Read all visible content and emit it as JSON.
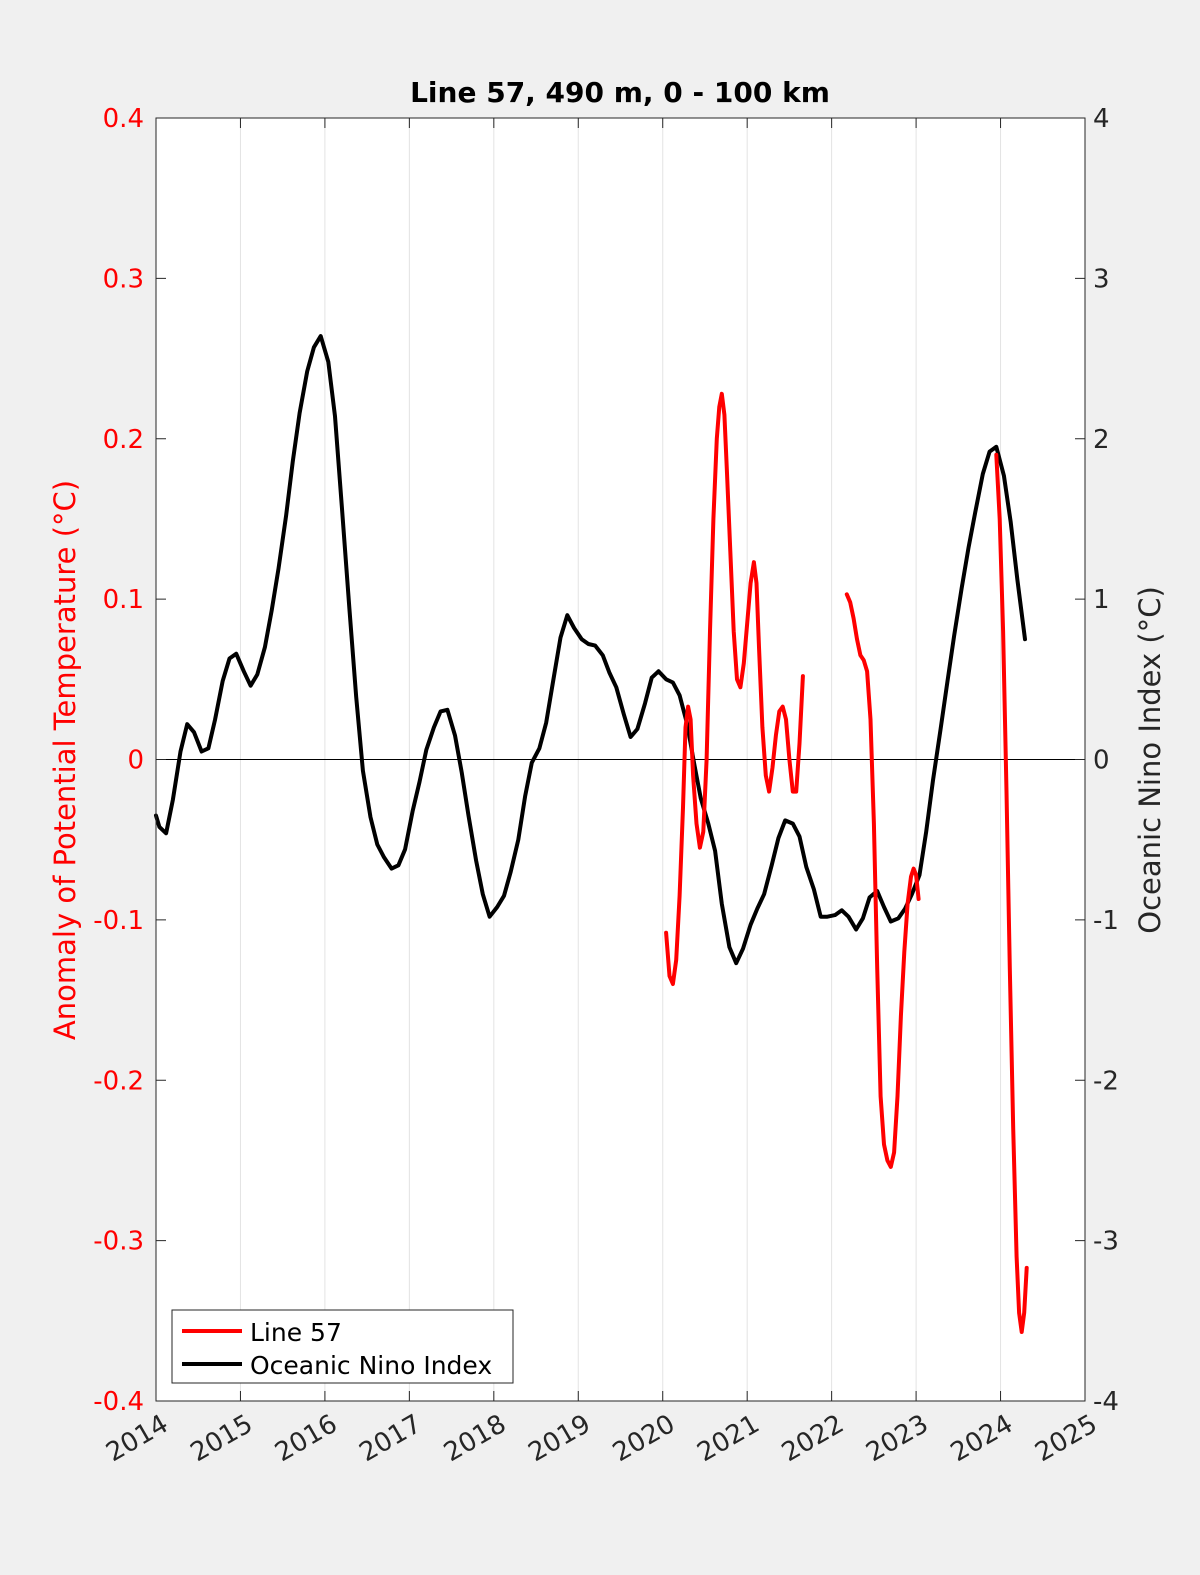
{
  "chart_data": {
    "type": "line",
    "title": "Line 57, 490 m, 0 - 100 km",
    "xlabel": "",
    "ylabel_left": "Anomaly of Potential Temperature (°C)",
    "ylabel_right": "Oceanic Nino Index (°C)",
    "xlim": [
      2014,
      2025
    ],
    "ylim_left": [
      -0.4,
      0.4
    ],
    "ylim_right": [
      -4,
      4
    ],
    "x_ticks": [
      "2014",
      "2015",
      "2016",
      "2017",
      "2018",
      "2019",
      "2020",
      "2021",
      "2022",
      "2023",
      "2024",
      "2025"
    ],
    "y_ticks_left": [
      "0.4",
      "0.3",
      "0.2",
      "0.1",
      "0",
      "-0.1",
      "-0.2",
      "-0.3",
      "-0.4"
    ],
    "y_ticks_right": [
      "4",
      "3",
      "2",
      "1",
      "0",
      "-1",
      "-2",
      "-3",
      "-4"
    ],
    "grid": "vertical",
    "legend_position": "bottom-left",
    "colors": {
      "line57": "#ff0000",
      "oni": "#000000",
      "left_axis": "#ff0000",
      "right_axis": "#262626"
    },
    "series": [
      {
        "name": "Line 57",
        "axis": "left",
        "segments": [
          [
            [
              2020.04,
              -0.108
            ],
            [
              2020.08,
              -0.135
            ],
            [
              2020.12,
              -0.14
            ],
            [
              2020.16,
              -0.125
            ],
            [
              2020.2,
              -0.085
            ],
            [
              2020.24,
              -0.03
            ],
            [
              2020.27,
              0.02
            ],
            [
              2020.3,
              0.033
            ],
            [
              2020.33,
              0.025
            ],
            [
              2020.36,
              -0.01
            ],
            [
              2020.4,
              -0.04
            ],
            [
              2020.44,
              -0.055
            ],
            [
              2020.48,
              -0.045
            ],
            [
              2020.52,
              0.0
            ],
            [
              2020.56,
              0.08
            ],
            [
              2020.6,
              0.15
            ],
            [
              2020.64,
              0.2
            ],
            [
              2020.67,
              0.22
            ],
            [
              2020.7,
              0.228
            ],
            [
              2020.73,
              0.215
            ],
            [
              2020.76,
              0.18
            ],
            [
              2020.8,
              0.13
            ],
            [
              2020.84,
              0.08
            ],
            [
              2020.88,
              0.05
            ],
            [
              2020.92,
              0.045
            ],
            [
              2020.96,
              0.06
            ],
            [
              2021.0,
              0.085
            ],
            [
              2021.04,
              0.11
            ],
            [
              2021.08,
              0.123
            ],
            [
              2021.11,
              0.11
            ],
            [
              2021.14,
              0.07
            ],
            [
              2021.18,
              0.02
            ],
            [
              2021.22,
              -0.01
            ],
            [
              2021.26,
              -0.02
            ],
            [
              2021.3,
              -0.005
            ],
            [
              2021.34,
              0.015
            ],
            [
              2021.38,
              0.03
            ],
            [
              2021.42,
              0.033
            ],
            [
              2021.46,
              0.025
            ],
            [
              2021.5,
              0.0
            ],
            [
              2021.54,
              -0.02
            ],
            [
              2021.58,
              -0.02
            ],
            [
              2021.62,
              0.01
            ],
            [
              2021.66,
              0.052
            ]
          ],
          [
            [
              2022.18,
              0.103
            ],
            [
              2022.22,
              0.098
            ],
            [
              2022.26,
              0.088
            ],
            [
              2022.3,
              0.075
            ],
            [
              2022.34,
              0.065
            ],
            [
              2022.38,
              0.062
            ],
            [
              2022.42,
              0.055
            ],
            [
              2022.46,
              0.025
            ],
            [
              2022.5,
              -0.04
            ],
            [
              2022.54,
              -0.13
            ],
            [
              2022.58,
              -0.21
            ],
            [
              2022.62,
              -0.24
            ],
            [
              2022.66,
              -0.25
            ],
            [
              2022.7,
              -0.254
            ],
            [
              2022.74,
              -0.245
            ],
            [
              2022.78,
              -0.21
            ],
            [
              2022.82,
              -0.16
            ],
            [
              2022.86,
              -0.12
            ],
            [
              2022.9,
              -0.09
            ],
            [
              2022.94,
              -0.073
            ],
            [
              2022.97,
              -0.068
            ],
            [
              2023.0,
              -0.072
            ],
            [
              2023.03,
              -0.087
            ]
          ],
          [
            [
              2023.95,
              0.19
            ],
            [
              2023.99,
              0.15
            ],
            [
              2024.03,
              0.08
            ],
            [
              2024.07,
              -0.02
            ],
            [
              2024.11,
              -0.13
            ],
            [
              2024.15,
              -0.23
            ],
            [
              2024.19,
              -0.31
            ],
            [
              2024.22,
              -0.345
            ],
            [
              2024.25,
              -0.357
            ],
            [
              2024.28,
              -0.345
            ],
            [
              2024.31,
              -0.317
            ]
          ]
        ]
      },
      {
        "name": "Oceanic Nino Index",
        "axis": "right",
        "segments": [
          [
            [
              2014.0,
              -0.35
            ],
            [
              2014.04,
              -0.42
            ],
            [
              2014.12,
              -0.46
            ],
            [
              2014.2,
              -0.25
            ],
            [
              2014.29,
              0.05
            ],
            [
              2014.37,
              0.22
            ],
            [
              2014.45,
              0.17
            ],
            [
              2014.54,
              0.05
            ],
            [
              2014.62,
              0.07
            ],
            [
              2014.7,
              0.25
            ],
            [
              2014.79,
              0.49
            ],
            [
              2014.87,
              0.63
            ],
            [
              2014.95,
              0.66
            ],
            [
              2015.04,
              0.55
            ],
            [
              2015.12,
              0.46
            ],
            [
              2015.2,
              0.53
            ],
            [
              2015.29,
              0.7
            ],
            [
              2015.37,
              0.93
            ],
            [
              2015.45,
              1.19
            ],
            [
              2015.54,
              1.52
            ],
            [
              2015.62,
              1.86
            ],
            [
              2015.7,
              2.16
            ],
            [
              2015.79,
              2.42
            ],
            [
              2015.87,
              2.57
            ],
            [
              2015.95,
              2.64
            ],
            [
              2016.04,
              2.48
            ],
            [
              2016.12,
              2.14
            ],
            [
              2016.2,
              1.58
            ],
            [
              2016.29,
              0.94
            ],
            [
              2016.37,
              0.39
            ],
            [
              2016.45,
              -0.07
            ],
            [
              2016.54,
              -0.36
            ],
            [
              2016.62,
              -0.53
            ],
            [
              2016.7,
              -0.61
            ],
            [
              2016.79,
              -0.68
            ],
            [
              2016.87,
              -0.66
            ],
            [
              2016.95,
              -0.56
            ],
            [
              2017.04,
              -0.32
            ],
            [
              2017.12,
              -0.14
            ],
            [
              2017.2,
              0.06
            ],
            [
              2017.29,
              0.2
            ],
            [
              2017.37,
              0.3
            ],
            [
              2017.45,
              0.31
            ],
            [
              2017.54,
              0.15
            ],
            [
              2017.62,
              -0.08
            ],
            [
              2017.7,
              -0.35
            ],
            [
              2017.79,
              -0.63
            ],
            [
              2017.87,
              -0.84
            ],
            [
              2017.95,
              -0.98
            ],
            [
              2018.04,
              -0.92
            ],
            [
              2018.12,
              -0.85
            ],
            [
              2018.2,
              -0.7
            ],
            [
              2018.29,
              -0.5
            ],
            [
              2018.37,
              -0.23
            ],
            [
              2018.45,
              -0.02
            ],
            [
              2018.54,
              0.07
            ],
            [
              2018.62,
              0.23
            ],
            [
              2018.7,
              0.48
            ],
            [
              2018.79,
              0.76
            ],
            [
              2018.87,
              0.9
            ],
            [
              2018.95,
              0.82
            ],
            [
              2019.04,
              0.75
            ],
            [
              2019.12,
              0.72
            ],
            [
              2019.2,
              0.71
            ],
            [
              2019.29,
              0.65
            ],
            [
              2019.37,
              0.54
            ],
            [
              2019.45,
              0.45
            ],
            [
              2019.54,
              0.28
            ],
            [
              2019.62,
              0.14
            ],
            [
              2019.7,
              0.19
            ],
            [
              2019.79,
              0.35
            ],
            [
              2019.87,
              0.51
            ],
            [
              2019.95,
              0.55
            ],
            [
              2020.04,
              0.5
            ],
            [
              2020.12,
              0.48
            ],
            [
              2020.2,
              0.4
            ],
            [
              2020.29,
              0.22
            ],
            [
              2020.37,
              -0.02
            ],
            [
              2020.45,
              -0.24
            ],
            [
              2020.54,
              -0.4
            ],
            [
              2020.62,
              -0.57
            ],
            [
              2020.7,
              -0.9
            ],
            [
              2020.79,
              -1.17
            ],
            [
              2020.87,
              -1.27
            ],
            [
              2020.95,
              -1.18
            ],
            [
              2021.04,
              -1.03
            ],
            [
              2021.12,
              -0.93
            ],
            [
              2021.2,
              -0.84
            ],
            [
              2021.29,
              -0.66
            ],
            [
              2021.37,
              -0.49
            ],
            [
              2021.45,
              -0.38
            ],
            [
              2021.54,
              -0.4
            ],
            [
              2021.62,
              -0.48
            ],
            [
              2021.7,
              -0.67
            ],
            [
              2021.79,
              -0.81
            ],
            [
              2021.87,
              -0.98
            ],
            [
              2021.95,
              -0.98
            ],
            [
              2022.04,
              -0.97
            ],
            [
              2022.12,
              -0.94
            ],
            [
              2022.2,
              -0.98
            ],
            [
              2022.29,
              -1.06
            ],
            [
              2022.37,
              -0.99
            ],
            [
              2022.45,
              -0.86
            ],
            [
              2022.54,
              -0.82
            ],
            [
              2022.62,
              -0.92
            ],
            [
              2022.7,
              -1.01
            ],
            [
              2022.79,
              -0.99
            ],
            [
              2022.87,
              -0.93
            ],
            [
              2022.95,
              -0.84
            ],
            [
              2023.04,
              -0.72
            ],
            [
              2023.12,
              -0.45
            ],
            [
              2023.2,
              -0.13
            ],
            [
              2023.29,
              0.19
            ],
            [
              2023.37,
              0.48
            ],
            [
              2023.45,
              0.77
            ],
            [
              2023.54,
              1.07
            ],
            [
              2023.62,
              1.32
            ],
            [
              2023.7,
              1.54
            ],
            [
              2023.79,
              1.78
            ],
            [
              2023.87,
              1.92
            ],
            [
              2023.95,
              1.95
            ],
            [
              2024.04,
              1.77
            ],
            [
              2024.12,
              1.48
            ],
            [
              2024.2,
              1.12
            ],
            [
              2024.29,
              0.75
            ]
          ]
        ]
      }
    ]
  }
}
